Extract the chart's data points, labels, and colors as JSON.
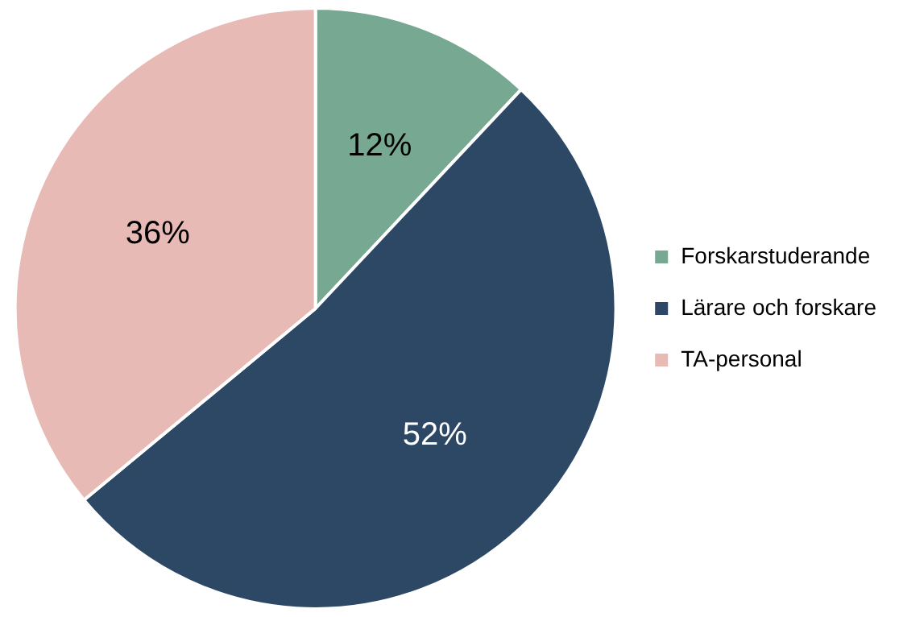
{
  "chart_data": {
    "type": "pie",
    "categories": [
      "Forskarstuderande",
      "Lärare och forskare",
      "TA-personal"
    ],
    "values": [
      12,
      52,
      36
    ],
    "colors": [
      "#77a891",
      "#2c4865",
      "#e8bab6"
    ],
    "value_labels": [
      "12%",
      "52%",
      "36%"
    ],
    "legend": "right"
  }
}
